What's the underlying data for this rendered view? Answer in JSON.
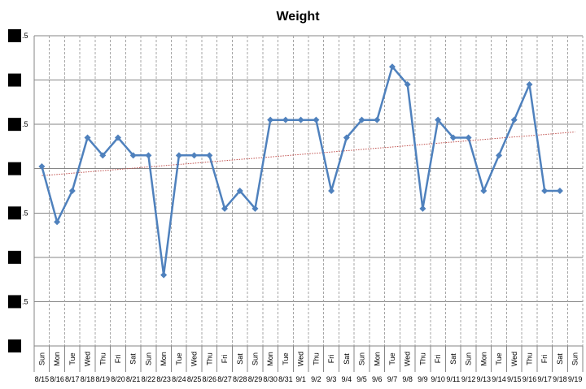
{
  "chart_data": {
    "type": "line",
    "title": "Weight",
    "xlabel": "",
    "ylabel": "",
    "y_tick_labels": [
      ".5",
      "",
      ".5",
      "",
      ".5",
      "",
      ".5",
      ""
    ],
    "x": [
      {
        "day": "Sun",
        "date": "8/15"
      },
      {
        "day": "Mon",
        "date": "8/16"
      },
      {
        "day": "Tue",
        "date": "8/17"
      },
      {
        "day": "Wed",
        "date": "8/18"
      },
      {
        "day": "Thu",
        "date": "8/19"
      },
      {
        "day": "Fri",
        "date": "8/20"
      },
      {
        "day": "Sat",
        "date": "8/21"
      },
      {
        "day": "Sun",
        "date": "8/22"
      },
      {
        "day": "Mon",
        "date": "8/23"
      },
      {
        "day": "Tue",
        "date": "8/24"
      },
      {
        "day": "Wed",
        "date": "8/25"
      },
      {
        "day": "Thu",
        "date": "8/26"
      },
      {
        "day": "Fri",
        "date": "8/27"
      },
      {
        "day": "Sat",
        "date": "8/28"
      },
      {
        "day": "Sun",
        "date": "8/29"
      },
      {
        "day": "Mon",
        "date": "8/30"
      },
      {
        "day": "Tue",
        "date": "8/31"
      },
      {
        "day": "Wed",
        "date": "9/1"
      },
      {
        "day": "Thu",
        "date": "9/2"
      },
      {
        "day": "Fri",
        "date": "9/3"
      },
      {
        "day": "Sat",
        "date": "9/4"
      },
      {
        "day": "Sun",
        "date": "9/5"
      },
      {
        "day": "Mon",
        "date": "9/6"
      },
      {
        "day": "Tue",
        "date": "9/7"
      },
      {
        "day": "Wed",
        "date": "9/8"
      },
      {
        "day": "Thu",
        "date": "9/9"
      },
      {
        "day": "Fri",
        "date": "9/10"
      },
      {
        "day": "Sat",
        "date": "9/11"
      },
      {
        "day": "Sun",
        "date": "9/12"
      },
      {
        "day": "Mon",
        "date": "9/13"
      },
      {
        "day": "Tue",
        "date": "9/14"
      },
      {
        "day": "Wed",
        "date": "9/15"
      },
      {
        "day": "Thu",
        "date": "9/16"
      },
      {
        "day": "Fri",
        "date": "9/17"
      },
      {
        "day": "Sat",
        "date": "9/18"
      },
      {
        "day": "Sun",
        "date": "9/19"
      }
    ],
    "series": [
      {
        "values": [
          4.05,
          2.8,
          3.5,
          4.7,
          4.3,
          4.7,
          4.3,
          4.3,
          1.6,
          4.3,
          4.3,
          4.3,
          3.1,
          3.5,
          3.1,
          5.1,
          5.1,
          5.1,
          5.1,
          3.5,
          4.7,
          5.1,
          5.1,
          6.3,
          5.9,
          3.1,
          5.1,
          4.7,
          4.7,
          3.5,
          4.3,
          5.1,
          5.9,
          3.5,
          3.5,
          null
        ],
        "color": "#4F81BD"
      }
    ],
    "trendline": {
      "type": "linear",
      "color": "#C0504D",
      "style": "dotted"
    },
    "ylim": [
      0,
      7
    ],
    "grid": true
  }
}
